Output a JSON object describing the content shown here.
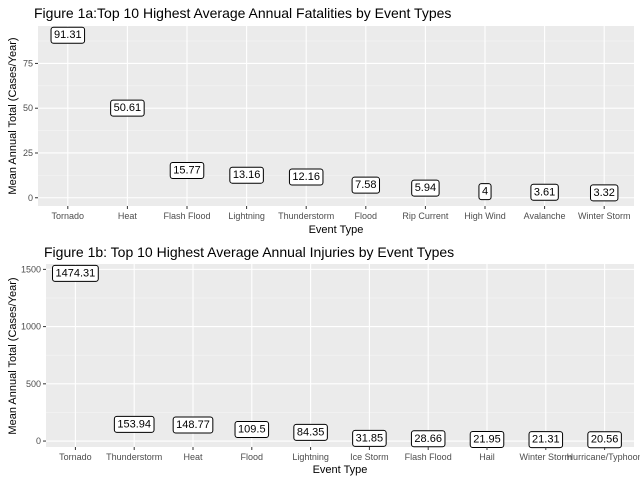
{
  "chart_data": [
    {
      "type": "label",
      "title": "Figure 1a:Top 10 Highest Average Annual Fatalities by Event Types",
      "xlabel": "Event Type",
      "ylabel": "Mean Annual Total (Cases/Year)",
      "categories": [
        "Tornado",
        "Heat",
        "Flash Flood",
        "Lightning",
        "Thunderstorm",
        "Flood",
        "Rip Current",
        "High Wind",
        "Avalanche",
        "Winter Storm"
      ],
      "values": [
        91.31,
        50.61,
        15.77,
        13.16,
        12.16,
        7.58,
        5.94,
        4,
        3.61,
        3.32
      ],
      "labels": [
        "91.31",
        "50.61",
        "15.77",
        "13.16",
        "12.16",
        "7.58",
        "5.94",
        "4",
        "3.61",
        "3.32"
      ],
      "yticks": [
        0,
        25,
        50,
        75
      ],
      "ytick_labels": [
        "0",
        "25",
        "50",
        "75"
      ],
      "ylim": [
        -4.6,
        95.9
      ],
      "grid": true,
      "legend": "none"
    },
    {
      "type": "label",
      "title": "Figure 1b: Top 10 Highest Average Annual Injuries by Event Types",
      "xlabel": "Event Type",
      "ylabel": "Mean Annual Total (Cases/Year)",
      "categories": [
        "Tornado",
        "Thunderstorm",
        "Heat",
        "Flood",
        "Lightning",
        "Ice Storm",
        "Flash Flood",
        "Hail",
        "Winter Storm",
        "Hurricane/Typhoon"
      ],
      "values": [
        1474.31,
        153.94,
        148.77,
        109.5,
        84.35,
        31.85,
        28.66,
        21.95,
        21.31,
        20.56
      ],
      "labels": [
        "1474.31",
        "153.94",
        "148.77",
        "109.5",
        "84.35",
        "31.85",
        "28.66",
        "21.95",
        "21.31",
        "20.56"
      ],
      "yticks": [
        0,
        500,
        1000,
        1500
      ],
      "ytick_labels": [
        "0",
        "500",
        "1000",
        "1500"
      ],
      "ylim": [
        -52,
        1547
      ],
      "grid": true,
      "legend": "none"
    }
  ]
}
